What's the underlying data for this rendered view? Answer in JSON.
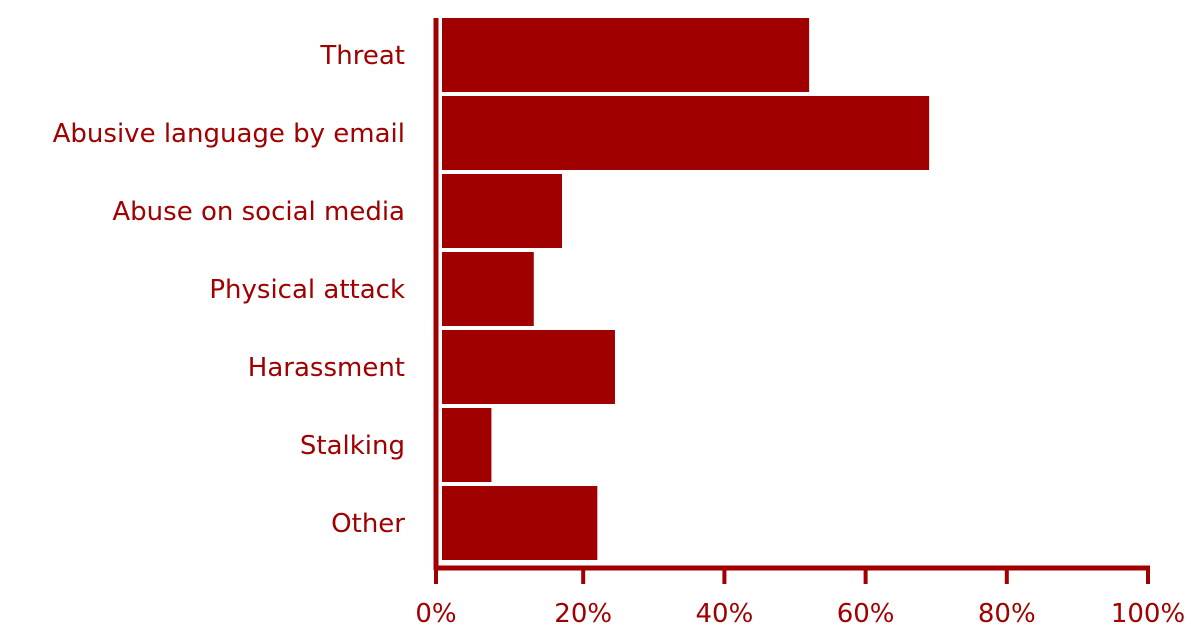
{
  "chart_data": {
    "type": "bar",
    "orientation": "horizontal",
    "title": "",
    "xlabel": "",
    "ylabel": "",
    "categories": [
      "Threat",
      "Abusive language by email",
      "Abuse on social media",
      "Physical attack",
      "Harassment",
      "Stalking",
      "Other"
    ],
    "values": [
      52,
      69,
      17,
      13,
      24.5,
      7,
      22
    ],
    "xlim": [
      0,
      100
    ],
    "xticks": [
      0,
      20,
      40,
      60,
      80,
      100
    ],
    "xtick_labels": [
      "0%",
      "20%",
      "40%",
      "60%",
      "80%",
      "100%"
    ],
    "grid": false,
    "legend": "none"
  },
  "colors": {
    "bar": "#a00000",
    "axis": "#a00000",
    "text": "#a00000"
  }
}
